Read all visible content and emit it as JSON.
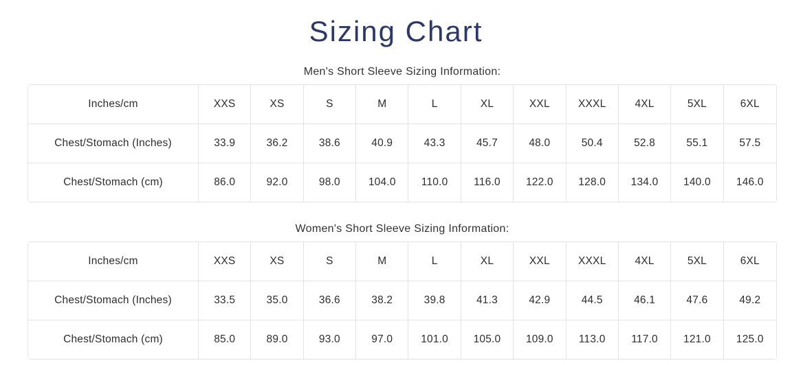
{
  "page": {
    "title": "Sizing Chart"
  },
  "colors": {
    "title_text": "#2c3968",
    "body_text": "#2e2e2e",
    "table_border": "#e4e4e4",
    "background": "#ffffff"
  },
  "tables": [
    {
      "caption": "Men's Short Sleeve Sizing Information:",
      "header": [
        "Inches/cm",
        "XXS",
        "XS",
        "S",
        "M",
        "L",
        "XL",
        "XXL",
        "XXXL",
        "4XL",
        "5XL",
        "6XL"
      ],
      "rows": [
        {
          "label": "Chest/Stomach (Inches)",
          "values": [
            "33.9",
            "36.2",
            "38.6",
            "40.9",
            "43.3",
            "45.7",
            "48.0",
            "50.4",
            "52.8",
            "55.1",
            "57.5"
          ]
        },
        {
          "label": "Chest/Stomach (cm)",
          "values": [
            "86.0",
            "92.0",
            "98.0",
            "104.0",
            "110.0",
            "116.0",
            "122.0",
            "128.0",
            "134.0",
            "140.0",
            "146.0"
          ]
        }
      ]
    },
    {
      "caption": "Women's Short Sleeve Sizing Information:",
      "header": [
        "Inches/cm",
        "XXS",
        "XS",
        "S",
        "M",
        "L",
        "XL",
        "XXL",
        "XXXL",
        "4XL",
        "5XL",
        "6XL"
      ],
      "rows": [
        {
          "label": "Chest/Stomach (Inches)",
          "values": [
            "33.5",
            "35.0",
            "36.6",
            "38.2",
            "39.8",
            "41.3",
            "42.9",
            "44.5",
            "46.1",
            "47.6",
            "49.2"
          ]
        },
        {
          "label": "Chest/Stomach (cm)",
          "values": [
            "85.0",
            "89.0",
            "93.0",
            "97.0",
            "101.0",
            "105.0",
            "109.0",
            "113.0",
            "117.0",
            "121.0",
            "125.0"
          ]
        }
      ]
    }
  ]
}
